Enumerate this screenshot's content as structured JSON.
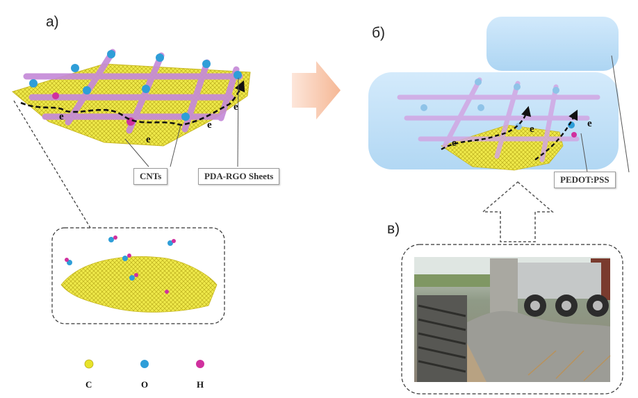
{
  "panels": {
    "a": "а)",
    "b": "б)",
    "c": "в)"
  },
  "callouts": {
    "cnts": "CNTs",
    "pda_rgo": "PDA-RGO Sheets",
    "pedot": "PEDOT:PSS"
  },
  "electron_labels": {
    "a": [
      "e",
      "e",
      "e",
      "e"
    ],
    "b": [
      "e",
      "e",
      "e"
    ]
  },
  "legend": [
    {
      "symbol": "C",
      "color": "#e7e32a"
    },
    {
      "symbol": "O",
      "color": "#2f9ed8"
    },
    {
      "symbol": "H",
      "color": "#d0309e"
    }
  ],
  "colors": {
    "sheet": "#e8e43a",
    "nanotube": "#c58ad8",
    "gel": "#b9dcf5",
    "arrow": "#f4b493"
  }
}
